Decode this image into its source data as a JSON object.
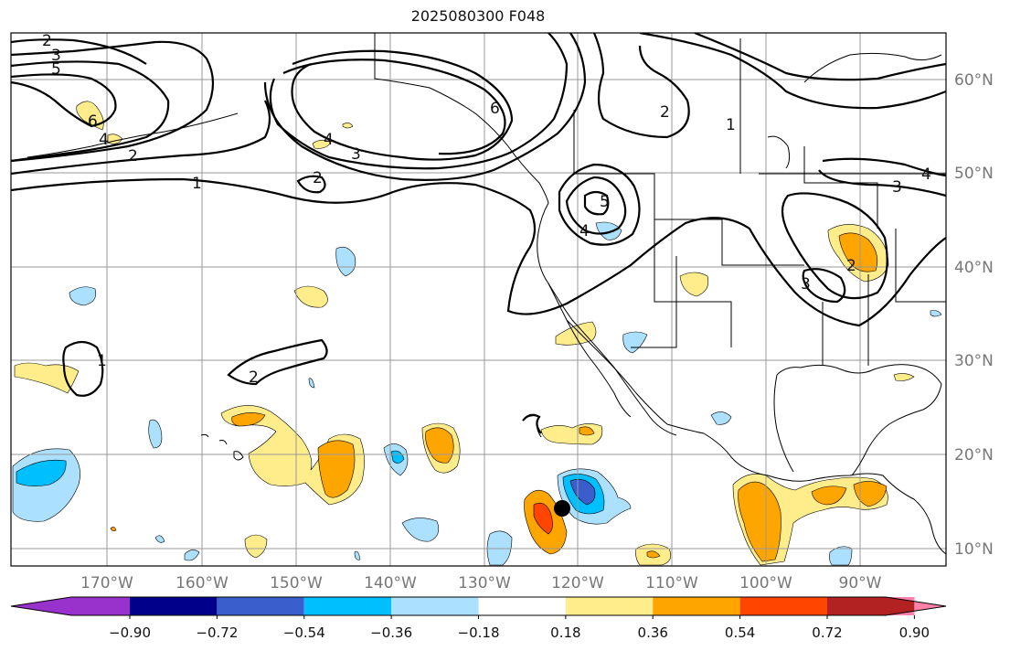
{
  "title": "2025080300 F048",
  "lat_labels": [
    "10°N",
    "20°N",
    "30°N",
    "40°N",
    "50°N",
    "60°N"
  ],
  "lon_labels": [
    "170°W",
    "160°W",
    "150°W",
    "140°W",
    "130°W",
    "120°W",
    "110°W",
    "100°W",
    "90°W"
  ],
  "contour_labels": [
    "2",
    "3",
    "5",
    "6",
    "4",
    "2",
    "1",
    "2",
    "6",
    "4",
    "3",
    "2",
    "1",
    "2",
    "5",
    "4",
    "1",
    "3",
    "4",
    "2",
    "3",
    "1",
    "1"
  ],
  "colorbar": {
    "ticks": [
      "−0.90",
      "−0.72",
      "−0.54",
      "−0.36",
      "−0.18",
      "0.18",
      "0.36",
      "0.54",
      "0.72",
      "0.90"
    ],
    "colors": [
      "#9932cc",
      "#00008b",
      "#3a5fcd",
      "#00bfff",
      "#abe0ff",
      "#ffffff",
      "#ffec8b",
      "#ffa500",
      "#ff4500",
      "#b22222",
      "#ff82ab"
    ]
  },
  "colors": {
    "light_yellow": "#ffec8b",
    "orange": "#ffa500",
    "red_orange": "#ff4500",
    "light_blue": "#abe0ff",
    "sky_blue": "#00bfff",
    "royal_blue": "#3a5fcd",
    "marker": "#000000"
  },
  "marker": {
    "lat": "14°N",
    "lon": "121°W"
  }
}
